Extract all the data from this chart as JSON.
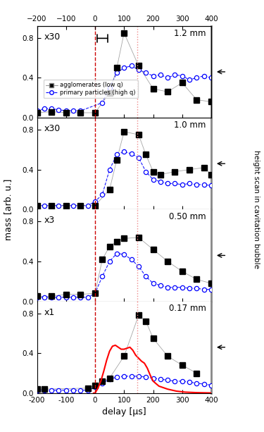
{
  "panels": [
    {
      "label": "1.2 mm",
      "multiplier": "x30",
      "sq_x": [
        -200,
        -150,
        -100,
        -50,
        0,
        50,
        75,
        100,
        150,
        200,
        250,
        300,
        350,
        400
      ],
      "sq_y": [
        0.05,
        0.06,
        0.05,
        0.05,
        0.05,
        0.25,
        0.5,
        0.85,
        0.52,
        0.29,
        0.26,
        0.35,
        0.18,
        0.16
      ],
      "ci_x": [
        -200,
        -175,
        -150,
        -125,
        -100,
        -75,
        -50,
        25,
        50,
        75,
        100,
        125,
        150,
        175,
        200,
        225,
        250,
        275,
        300,
        325,
        350,
        375,
        400
      ],
      "ci_y": [
        0.07,
        0.09,
        0.09,
        0.08,
        0.07,
        0.07,
        0.07,
        0.15,
        0.3,
        0.45,
        0.5,
        0.52,
        0.48,
        0.45,
        0.42,
        0.43,
        0.4,
        0.43,
        0.42,
        0.38,
        0.4,
        0.42,
        0.4
      ],
      "has_red_line": false,
      "ylim": [
        0.0,
        0.92
      ]
    },
    {
      "label": "1.0 mm",
      "multiplier": "x30",
      "sq_x": [
        -200,
        -150,
        -100,
        -50,
        0,
        50,
        75,
        100,
        150,
        175,
        200,
        225,
        275,
        325,
        375,
        400
      ],
      "sq_y": [
        0.04,
        0.04,
        0.04,
        0.04,
        0.04,
        0.2,
        0.5,
        0.78,
        0.75,
        0.55,
        0.38,
        0.35,
        0.38,
        0.4,
        0.42,
        0.35
      ],
      "ci_x": [
        -200,
        -175,
        -150,
        -125,
        -100,
        -75,
        -50,
        -25,
        0,
        25,
        50,
        75,
        100,
        125,
        150,
        175,
        200,
        225,
        250,
        275,
        300,
        325,
        350,
        375,
        400
      ],
      "ci_y": [
        0.04,
        0.04,
        0.04,
        0.04,
        0.04,
        0.04,
        0.04,
        0.04,
        0.08,
        0.15,
        0.4,
        0.55,
        0.58,
        0.56,
        0.52,
        0.38,
        0.3,
        0.28,
        0.26,
        0.26,
        0.25,
        0.26,
        0.25,
        0.25,
        0.24
      ],
      "has_red_line": false,
      "ylim": [
        0.0,
        0.92
      ]
    },
    {
      "label": "0.50 mm",
      "multiplier": "x3",
      "sq_x": [
        -200,
        -150,
        -100,
        -50,
        0,
        25,
        50,
        75,
        100,
        150,
        200,
        250,
        300,
        350,
        400
      ],
      "sq_y": [
        0.05,
        0.05,
        0.07,
        0.07,
        0.08,
        0.42,
        0.55,
        0.6,
        0.63,
        0.64,
        0.52,
        0.4,
        0.3,
        0.22,
        0.18
      ],
      "ci_x": [
        -200,
        -175,
        -150,
        -125,
        -100,
        -75,
        -50,
        -25,
        0,
        25,
        50,
        75,
        100,
        125,
        150,
        175,
        200,
        225,
        250,
        275,
        300,
        325,
        350,
        375,
        400
      ],
      "ci_y": [
        0.04,
        0.04,
        0.04,
        0.04,
        0.04,
        0.04,
        0.04,
        0.04,
        0.08,
        0.25,
        0.4,
        0.48,
        0.47,
        0.42,
        0.35,
        0.25,
        0.18,
        0.16,
        0.14,
        0.14,
        0.14,
        0.13,
        0.13,
        0.12,
        0.12
      ],
      "has_red_line": false,
      "ylim": [
        0.0,
        0.92
      ]
    },
    {
      "label": "0.17 mm",
      "multiplier": "x1",
      "sq_x": [
        -200,
        -175,
        -25,
        0,
        25,
        50,
        100,
        150,
        175,
        200,
        250,
        300,
        350
      ],
      "sq_y": [
        0.04,
        0.04,
        0.05,
        0.08,
        0.12,
        0.15,
        0.37,
        0.78,
        0.72,
        0.55,
        0.37,
        0.28,
        0.2
      ],
      "ci_x": [
        -200,
        -175,
        -150,
        -125,
        -100,
        -75,
        -50,
        -25,
        0,
        25,
        50,
        75,
        100,
        125,
        150,
        175,
        200,
        225,
        250,
        275,
        300,
        325,
        350,
        375,
        400
      ],
      "ci_y": [
        0.03,
        0.03,
        0.03,
        0.03,
        0.03,
        0.03,
        0.03,
        0.03,
        0.06,
        0.1,
        0.14,
        0.16,
        0.17,
        0.17,
        0.17,
        0.16,
        0.15,
        0.14,
        0.13,
        0.12,
        0.12,
        0.11,
        0.1,
        0.09,
        0.08
      ],
      "has_red_line": true,
      "red_x": [
        -5,
        0,
        10,
        20,
        30,
        40,
        50,
        60,
        70,
        80,
        90,
        100,
        110,
        120,
        130,
        140,
        150,
        160,
        170,
        180,
        190,
        200,
        220,
        250,
        280,
        310,
        350,
        400
      ],
      "red_y": [
        0.0,
        0.0,
        0.05,
        0.12,
        0.22,
        0.33,
        0.42,
        0.47,
        0.48,
        0.46,
        0.44,
        0.44,
        0.45,
        0.46,
        0.43,
        0.38,
        0.35,
        0.32,
        0.3,
        0.25,
        0.18,
        0.12,
        0.07,
        0.04,
        0.02,
        0.01,
        0.005,
        0.002
      ],
      "ylim": [
        0.0,
        0.92
      ]
    }
  ],
  "vline1": 0,
  "vline2": 145,
  "xlim": [
    -200,
    400
  ],
  "xticks": [
    -200,
    -100,
    0,
    100,
    200,
    300,
    400
  ],
  "xlabel": "delay [µs]",
  "ylabel": "mass [arb. u.]",
  "right_ylabel": "height scan in cavitation bubble",
  "sq_color": "black",
  "ci_color": "blue",
  "red_color": "red",
  "vline1_color": "#cc0000",
  "vline2_color": "#ee8888",
  "legend_labels": [
    "agglomerates (low q)",
    "primary particles (high q)"
  ]
}
